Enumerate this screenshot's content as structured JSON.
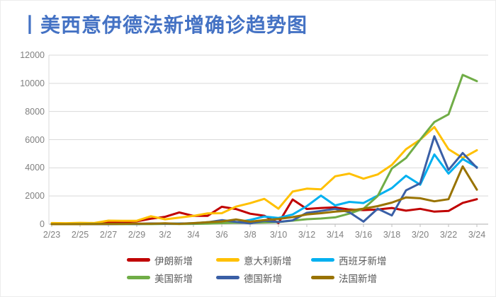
{
  "page": {
    "title": "丨美西意伊德法新增确诊趋势图"
  },
  "chart_data": {
    "type": "line",
    "title": "丨美西意伊德法新增确诊趋势图",
    "title_color": "#4472C4",
    "x": [
      "2/23",
      "2/24",
      "2/25",
      "2/26",
      "2/27",
      "2/28",
      "2/29",
      "3/1",
      "3/2",
      "3/3",
      "3/4",
      "3/5",
      "3/6",
      "3/7",
      "3/8",
      "3/9",
      "3/10",
      "3/11",
      "3/12",
      "3/13",
      "3/14",
      "3/15",
      "3/16",
      "3/17",
      "3/18",
      "3/19",
      "3/20",
      "3/21",
      "3/22",
      "3/23",
      "3/24"
    ],
    "x_tick_labels": [
      "2/23",
      "2/25",
      "2/27",
      "2/29",
      "3/2",
      "3/4",
      "3/6",
      "3/8",
      "3/10",
      "3/12",
      "3/14",
      "3/16",
      "3/18",
      "3/20",
      "3/22",
      "3/24"
    ],
    "y_ticks": [
      0,
      2000,
      4000,
      6000,
      8000,
      10000,
      12000
    ],
    "ylim": [
      0,
      12000
    ],
    "grid": "horizontal",
    "legend_position": "bottom",
    "axis_text_color": "#808080",
    "legend_text_color": "#595959",
    "gridline_color": "#D9D9D9",
    "axisline_color": "#BFBFBF",
    "series": [
      {
        "name": "伊朗新增",
        "color": "#C00000",
        "values": [
          15,
          18,
          34,
          44,
          106,
          143,
          205,
          385,
          523,
          835,
          586,
          591,
          1234,
          1076,
          743,
          595,
          80,
          1750,
          1080,
          1150,
          1190,
          1040,
          1000,
          1040,
          1150,
          960,
          1090,
          890,
          940,
          1510,
          1770
        ]
      },
      {
        "name": "意大利新增",
        "color": "#FFC000",
        "values": [
          78,
          72,
          93,
          78,
          250,
          238,
          240,
          561,
          347,
          466,
          587,
          769,
          778,
          1247,
          1492,
          1797,
          1100,
          2313,
          2520,
          2470,
          3400,
          3590,
          3230,
          3530,
          4210,
          5320,
          6000,
          6900,
          5320,
          4700,
          5250
        ]
      },
      {
        "name": "西班牙新增",
        "color": "#00B0F0",
        "values": [
          0,
          1,
          4,
          7,
          3,
          17,
          13,
          39,
          36,
          45,
          63,
          54,
          119,
          124,
          300,
          540,
          440,
          690,
          1280,
          2030,
          1330,
          1580,
          1500,
          2030,
          2560,
          3440,
          2800,
          4950,
          3590,
          4630,
          4050
        ]
      },
      {
        "name": "美国新增",
        "color": "#70AD47",
        "values": [
          0,
          0,
          0,
          6,
          1,
          4,
          7,
          3,
          20,
          14,
          22,
          34,
          74,
          105,
          95,
          121,
          150,
          250,
          350,
          400,
          480,
          750,
          1100,
          2000,
          3950,
          4700,
          6000,
          7250,
          7800,
          10600,
          10150
        ]
      },
      {
        "name": "德国新增",
        "color": "#3A5FA6",
        "values": [
          0,
          0,
          1,
          2,
          5,
          31,
          9,
          51,
          28,
          39,
          66,
          138,
          284,
          163,
          55,
          237,
          157,
          271,
          802,
          940,
          1090,
          850,
          180,
          1100,
          620,
          2400,
          2900,
          6240,
          3850,
          5050,
          4000
        ]
      },
      {
        "name": "法国新增",
        "color": "#997300",
        "values": [
          0,
          0,
          2,
          4,
          20,
          19,
          43,
          30,
          61,
          21,
          73,
          138,
          190,
          336,
          177,
          286,
          372,
          500,
          690,
          780,
          890,
          960,
          1100,
          1280,
          1530,
          1900,
          1840,
          1620,
          1770,
          4100,
          2450
        ]
      }
    ]
  }
}
